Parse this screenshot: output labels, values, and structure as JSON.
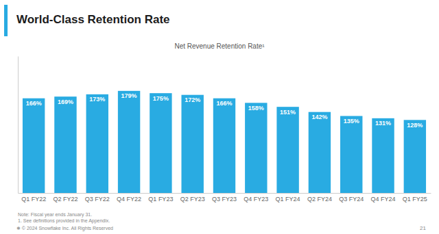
{
  "chart_data": {
    "type": "bar",
    "title": "World-Class Retention Rate",
    "subtitle": "Net Revenue Retention Rate¹",
    "categories": [
      "Q1 FY22",
      "Q2 FY22",
      "Q3 FY22",
      "Q4 FY22",
      "Q1 FY23",
      "Q2 FY23",
      "Q3 FY23",
      "Q4 FY23",
      "Q1 FY24",
      "Q2 FY24",
      "Q3 FY24",
      "Q4 FY24",
      "Q1 FY25"
    ],
    "values": [
      166,
      169,
      173,
      179,
      175,
      172,
      166,
      158,
      151,
      142,
      135,
      131,
      128
    ],
    "value_labels": [
      "166%",
      "169%",
      "173%",
      "179%",
      "175%",
      "172%",
      "166%",
      "158%",
      "151%",
      "142%",
      "135%",
      "131%",
      "128%"
    ],
    "data_labels": true,
    "color": "#29ABE2",
    "ylim": [
      0,
      240
    ],
    "grid": false,
    "tick_labels": "x",
    "annotations": [
      "Note: Fiscal year ends January 31.",
      "1. See definitions provided in the Appendix.",
      "❅  © 2024 Snowflake Inc. All Rights Reserved",
      "21"
    ]
  }
}
